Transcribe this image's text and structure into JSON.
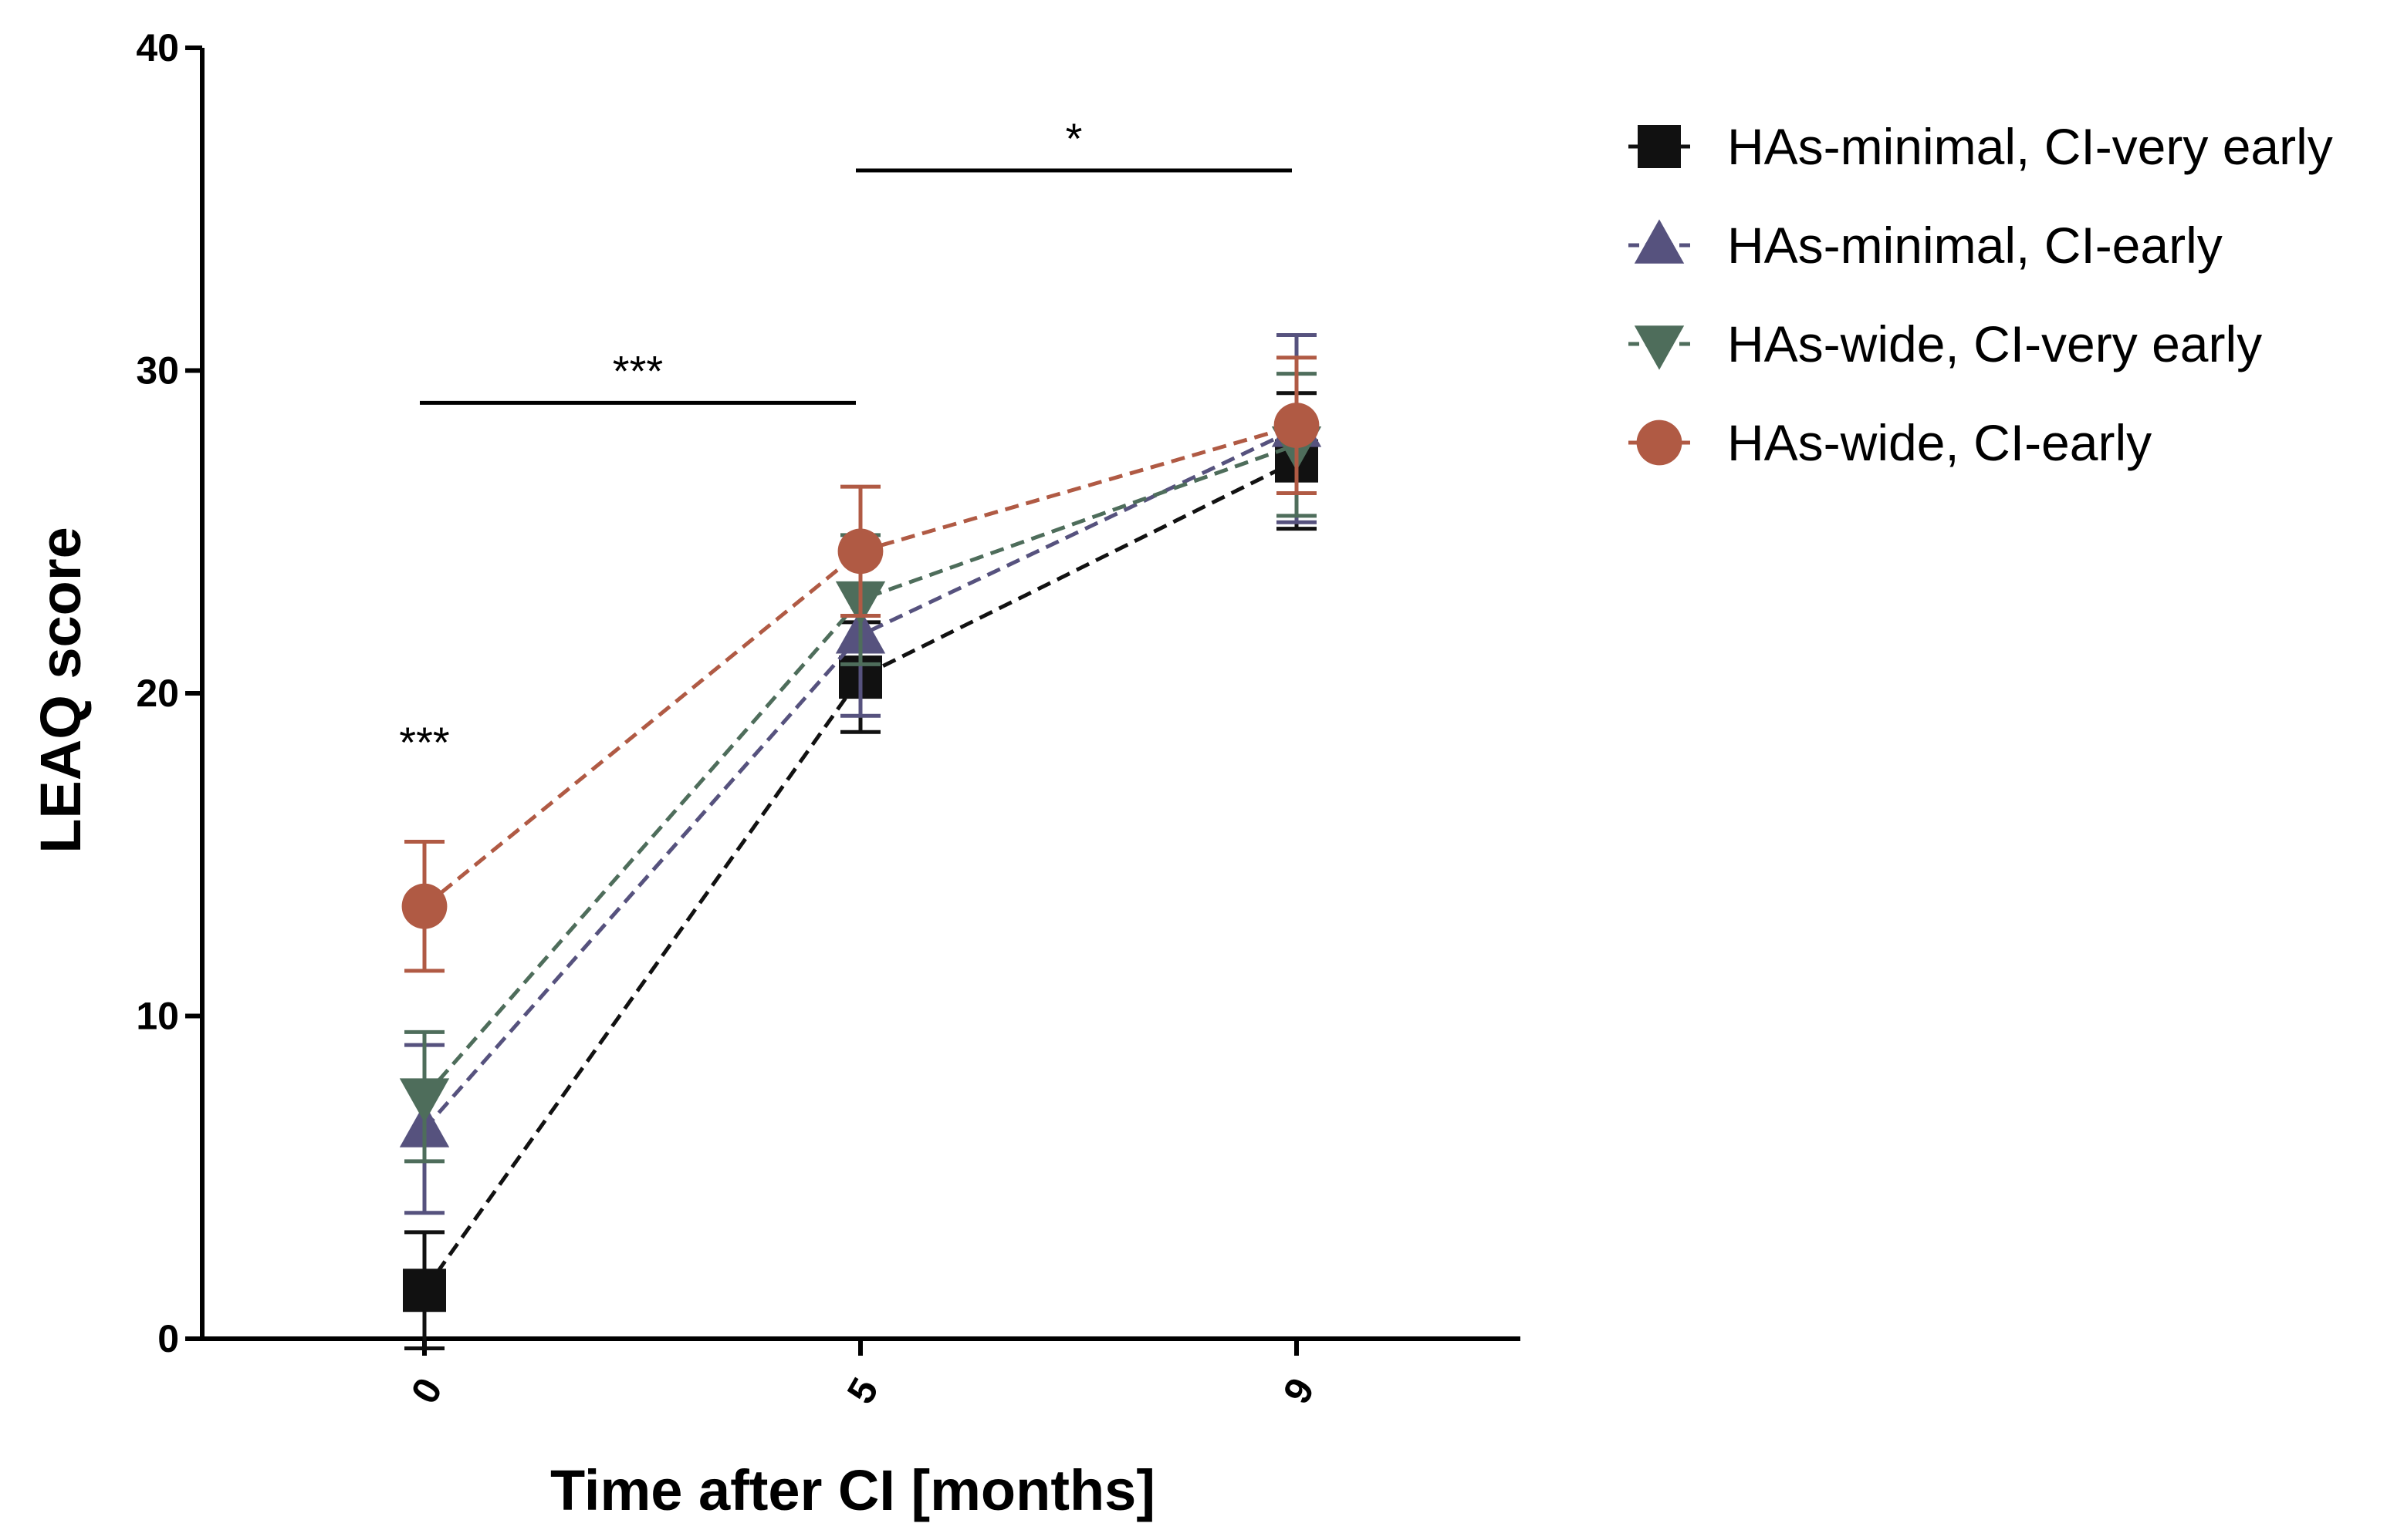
{
  "chart_data": {
    "type": "line",
    "title": "",
    "xlabel": "Time after CI [months]",
    "ylabel": "LEAQ score",
    "x": [
      0,
      5,
      9
    ],
    "x_tick_labels": [
      "0",
      "5",
      "9"
    ],
    "ylim": [
      0,
      40
    ],
    "y_ticks": [
      0,
      10,
      20,
      30,
      40
    ],
    "y_tick_labels": [
      "0",
      "10",
      "20",
      "30",
      "40"
    ],
    "grid": false,
    "legend_position": "right",
    "series": [
      {
        "name": "HAs-minimal, CI-very early",
        "marker": "square",
        "color": "#111111",
        "values": [
          1.5,
          20.5,
          27.2
        ],
        "error": [
          1.8,
          1.7,
          2.1
        ]
      },
      {
        "name": "HAs-minimal, CI-early",
        "marker": "triangle-up",
        "color": "#56527e",
        "values": [
          6.5,
          21.8,
          28.2
        ],
        "error": [
          2.6,
          2.5,
          2.9
        ]
      },
      {
        "name": "HAs-wide, CI-very early",
        "marker": "triangle-down",
        "color": "#4e6d5b",
        "values": [
          7.5,
          22.9,
          27.7
        ],
        "error": [
          2.0,
          2.0,
          2.2
        ]
      },
      {
        "name": "HAs-wide, CI-early",
        "marker": "circle",
        "color": "#b05a44",
        "values": [
          13.4,
          24.4,
          28.3
        ],
        "error": [
          2.0,
          2.0,
          2.1
        ]
      }
    ],
    "annotations": [
      {
        "text": "***",
        "type": "point",
        "x": 0,
        "y": 18.5
      },
      {
        "text": "***",
        "type": "bracket",
        "x1": 0,
        "x2": 5,
        "y": 29.0
      },
      {
        "text": "*",
        "type": "bracket",
        "x1": 5,
        "x2": 9,
        "y": 36.2
      }
    ]
  }
}
